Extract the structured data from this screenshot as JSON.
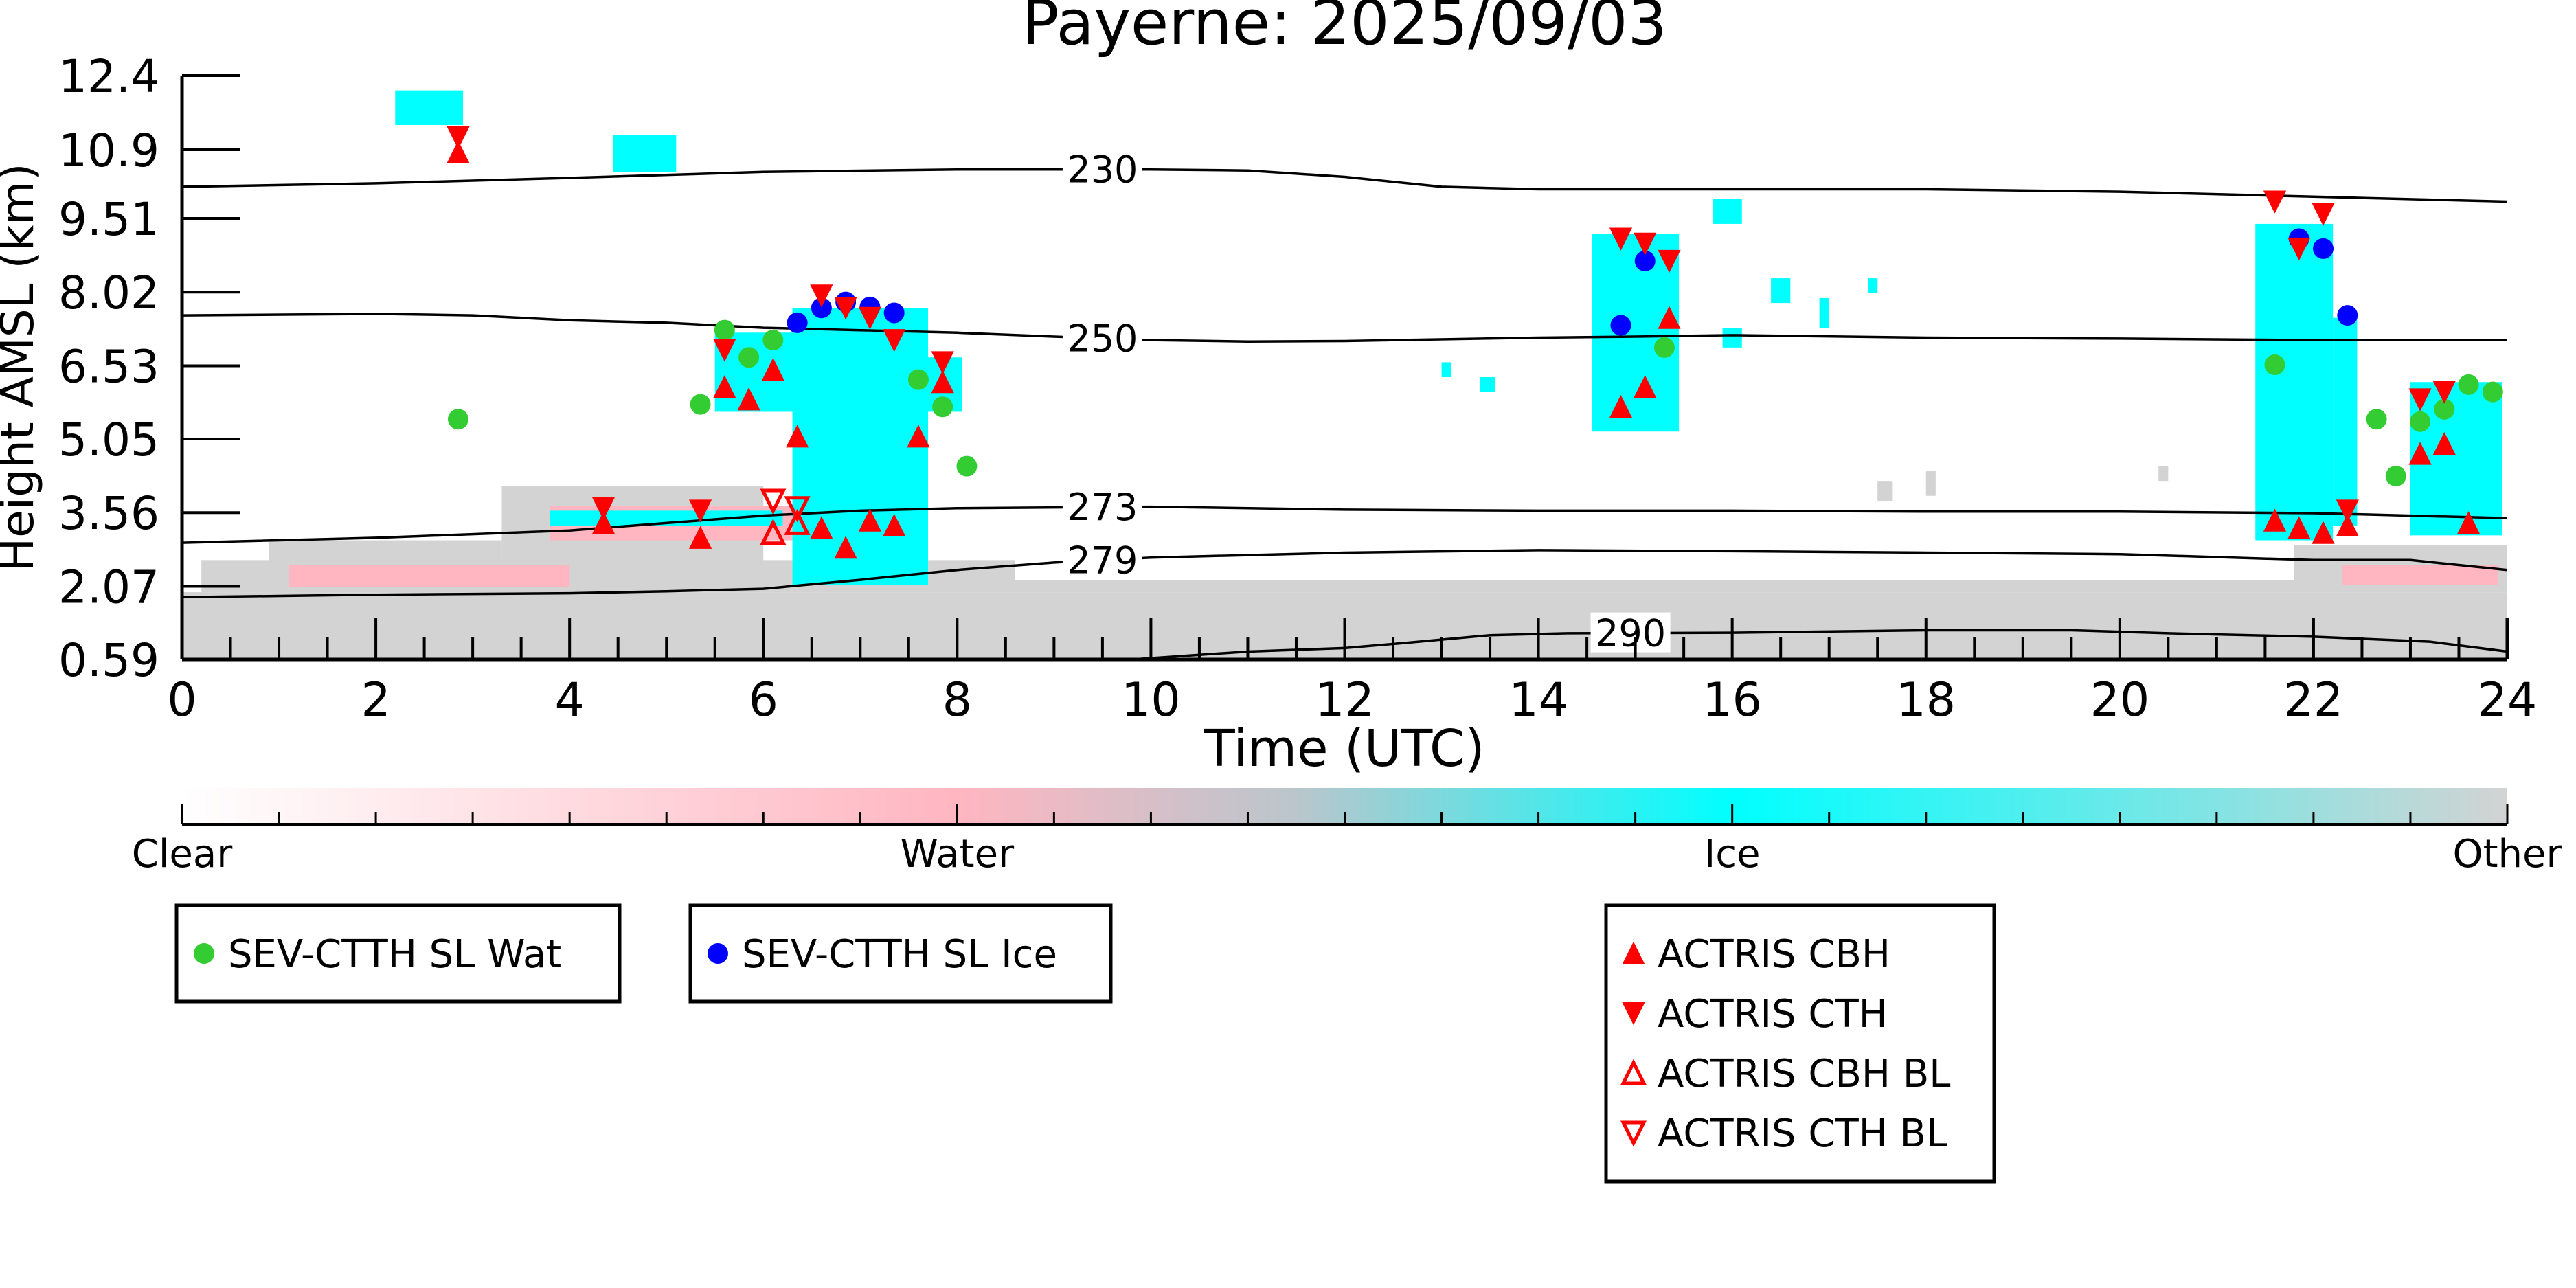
{
  "chart_data": {
    "type": "scatter",
    "title": "Payerne: 2025/09/03",
    "xlabel": "Time (UTC)",
    "ylabel": "Height AMSL (km)",
    "xlim": [
      0,
      24
    ],
    "ylim": [
      0.59,
      12.4
    ],
    "x_ticks": [
      0,
      2,
      4,
      6,
      8,
      10,
      12,
      14,
      16,
      18,
      20,
      22,
      24
    ],
    "y_ticks": [
      0.59,
      2.07,
      3.56,
      5.05,
      6.53,
      8.02,
      9.51,
      10.9,
      12.4
    ],
    "y_tick_labels": [
      "0.59",
      "2.07",
      "3.56",
      "5.05",
      "6.53",
      "8.02",
      "9.51",
      "10.9",
      "12.4"
    ],
    "grid": false,
    "colorbar": {
      "labels": [
        "Clear",
        "Water",
        "Ice",
        "Other"
      ],
      "colors": [
        "#ffffff",
        "#ffb6c1",
        "#00ffff",
        "#d3d3d3"
      ]
    },
    "legends": [
      {
        "entries": [
          {
            "name": "SEV-CTTH SL Wat",
            "marker": "circle",
            "color": "#33cc33"
          }
        ]
      },
      {
        "entries": [
          {
            "name": "SEV-CTTH SL Ice",
            "marker": "circle",
            "color": "#0000ff"
          }
        ]
      },
      {
        "entries": [
          {
            "name": "ACTRIS CBH",
            "marker": "triangle-up",
            "color": "#ff0000"
          },
          {
            "name": "ACTRIS CTH",
            "marker": "triangle-down",
            "color": "#ff0000"
          },
          {
            "name": "ACTRIS CBH BL",
            "marker": "triangle-up-open",
            "color": "#ff0000"
          },
          {
            "name": "ACTRIS CTH BL",
            "marker": "triangle-down-open",
            "color": "#ff0000"
          }
        ]
      }
    ],
    "contours": [
      {
        "label": "230",
        "label_x": 9.5,
        "points": [
          [
            0,
            10.15
          ],
          [
            2,
            10.22
          ],
          [
            4,
            10.33
          ],
          [
            6,
            10.45
          ],
          [
            8,
            10.5
          ],
          [
            10,
            10.5
          ],
          [
            11,
            10.48
          ],
          [
            12,
            10.35
          ],
          [
            13,
            10.15
          ],
          [
            14,
            10.1
          ],
          [
            16,
            10.1
          ],
          [
            18,
            10.1
          ],
          [
            20,
            10.05
          ],
          [
            22,
            9.95
          ],
          [
            24,
            9.85
          ]
        ]
      },
      {
        "label": "250",
        "label_x": 9.5,
        "points": [
          [
            0,
            7.55
          ],
          [
            2,
            7.58
          ],
          [
            3,
            7.55
          ],
          [
            4,
            7.45
          ],
          [
            5,
            7.4
          ],
          [
            6,
            7.3
          ],
          [
            7,
            7.25
          ],
          [
            8,
            7.2
          ],
          [
            9,
            7.12
          ],
          [
            10,
            7.05
          ],
          [
            11,
            7.02
          ],
          [
            12,
            7.03
          ],
          [
            14,
            7.1
          ],
          [
            15,
            7.12
          ],
          [
            16,
            7.15
          ],
          [
            18,
            7.1
          ],
          [
            20,
            7.08
          ],
          [
            22,
            7.05
          ],
          [
            24,
            7.05
          ]
        ]
      },
      {
        "label": "273",
        "label_x": 9.5,
        "points": [
          [
            0,
            2.95
          ],
          [
            2,
            3.05
          ],
          [
            4,
            3.2
          ],
          [
            5,
            3.35
          ],
          [
            6,
            3.5
          ],
          [
            7,
            3.6
          ],
          [
            8,
            3.65
          ],
          [
            10,
            3.68
          ],
          [
            12,
            3.62
          ],
          [
            14,
            3.6
          ],
          [
            16,
            3.6
          ],
          [
            18,
            3.58
          ],
          [
            20,
            3.58
          ],
          [
            22,
            3.55
          ],
          [
            24,
            3.45
          ]
        ]
      },
      {
        "label": "279",
        "label_x": 9.5,
        "points": [
          [
            0,
            1.85
          ],
          [
            2,
            1.9
          ],
          [
            4,
            1.93
          ],
          [
            5,
            1.97
          ],
          [
            6,
            2.02
          ],
          [
            7,
            2.2
          ],
          [
            8,
            2.4
          ],
          [
            9,
            2.55
          ],
          [
            10,
            2.65
          ],
          [
            12,
            2.75
          ],
          [
            14,
            2.8
          ],
          [
            16,
            2.78
          ],
          [
            18,
            2.75
          ],
          [
            20,
            2.72
          ],
          [
            22,
            2.6
          ],
          [
            23,
            2.6
          ],
          [
            24,
            2.4
          ]
        ]
      },
      {
        "label": "290",
        "label_x": 14.95,
        "points": [
          [
            9.8,
            0.59
          ],
          [
            11,
            0.75
          ],
          [
            12,
            0.82
          ],
          [
            12.6,
            0.92
          ],
          [
            13.5,
            1.08
          ],
          [
            14.3,
            1.12
          ],
          [
            16,
            1.13
          ],
          [
            18,
            1.18
          ],
          [
            19.5,
            1.18
          ],
          [
            20.5,
            1.12
          ],
          [
            22,
            1.05
          ],
          [
            23.2,
            0.95
          ],
          [
            24,
            0.75
          ]
        ]
      }
    ],
    "series": [
      {
        "name": "SEV-CTTH SL Wat",
        "marker": "circle",
        "color": "#33cc33",
        "points": [
          [
            2.85,
            5.45
          ],
          [
            5.35,
            5.75
          ],
          [
            5.6,
            7.25
          ],
          [
            5.85,
            6.7
          ],
          [
            6.1,
            7.05
          ],
          [
            7.6,
            6.25
          ],
          [
            7.85,
            5.7
          ],
          [
            8.1,
            4.5
          ],
          [
            15.3,
            6.9
          ],
          [
            21.6,
            6.55
          ],
          [
            22.65,
            5.45
          ],
          [
            22.85,
            4.3
          ],
          [
            23.1,
            5.4
          ],
          [
            23.35,
            5.65
          ],
          [
            23.6,
            6.15
          ],
          [
            23.85,
            6.0
          ]
        ]
      },
      {
        "name": "SEV-CTTH SL Ice",
        "marker": "circle",
        "color": "#0000ff",
        "points": [
          [
            6.35,
            7.4
          ],
          [
            6.6,
            7.7
          ],
          [
            6.85,
            7.82
          ],
          [
            7.1,
            7.72
          ],
          [
            7.35,
            7.6
          ],
          [
            14.85,
            7.35
          ],
          [
            15.1,
            8.65
          ],
          [
            21.85,
            9.1
          ],
          [
            22.1,
            8.9
          ],
          [
            22.35,
            7.55
          ]
        ]
      },
      {
        "name": "ACTRIS CBH",
        "marker": "triangle-up",
        "color": "#ff0000",
        "points": [
          [
            2.85,
            10.85
          ],
          [
            4.35,
            3.35
          ],
          [
            5.35,
            3.05
          ],
          [
            5.6,
            6.1
          ],
          [
            5.85,
            5.85
          ],
          [
            6.1,
            6.45
          ],
          [
            6.35,
            5.1
          ],
          [
            6.6,
            3.25
          ],
          [
            6.85,
            2.85
          ],
          [
            7.1,
            3.4
          ],
          [
            7.35,
            3.3
          ],
          [
            7.6,
            5.1
          ],
          [
            7.85,
            6.2
          ],
          [
            14.85,
            5.7
          ],
          [
            15.1,
            6.1
          ],
          [
            15.35,
            7.5
          ],
          [
            21.6,
            3.4
          ],
          [
            21.85,
            3.25
          ],
          [
            22.1,
            3.15
          ],
          [
            22.35,
            3.3
          ],
          [
            23.1,
            4.75
          ],
          [
            23.35,
            4.95
          ],
          [
            23.6,
            3.35
          ]
        ]
      },
      {
        "name": "ACTRIS CTH",
        "marker": "triangle-down",
        "color": "#ff0000",
        "points": [
          [
            2.85,
            11.15
          ],
          [
            4.35,
            3.65
          ],
          [
            5.35,
            3.6
          ],
          [
            5.6,
            6.85
          ],
          [
            6.6,
            7.95
          ],
          [
            6.85,
            7.7
          ],
          [
            7.1,
            7.5
          ],
          [
            7.35,
            7.05
          ],
          [
            7.85,
            6.6
          ],
          [
            14.85,
            9.1
          ],
          [
            15.1,
            9.0
          ],
          [
            15.35,
            8.65
          ],
          [
            21.6,
            9.85
          ],
          [
            21.85,
            8.9
          ],
          [
            22.1,
            9.6
          ],
          [
            22.35,
            3.6
          ],
          [
            23.1,
            5.85
          ],
          [
            23.35,
            6.0
          ]
        ]
      },
      {
        "name": "ACTRIS CBH BL",
        "marker": "triangle-up-open",
        "color": "#ff0000",
        "points": [
          [
            6.1,
            3.15
          ],
          [
            6.35,
            3.35
          ]
        ]
      },
      {
        "name": "ACTRIS CTH BL",
        "marker": "triangle-down-open",
        "color": "#ff0000",
        "points": [
          [
            6.1,
            3.8
          ],
          [
            6.35,
            3.65
          ]
        ]
      }
    ]
  }
}
